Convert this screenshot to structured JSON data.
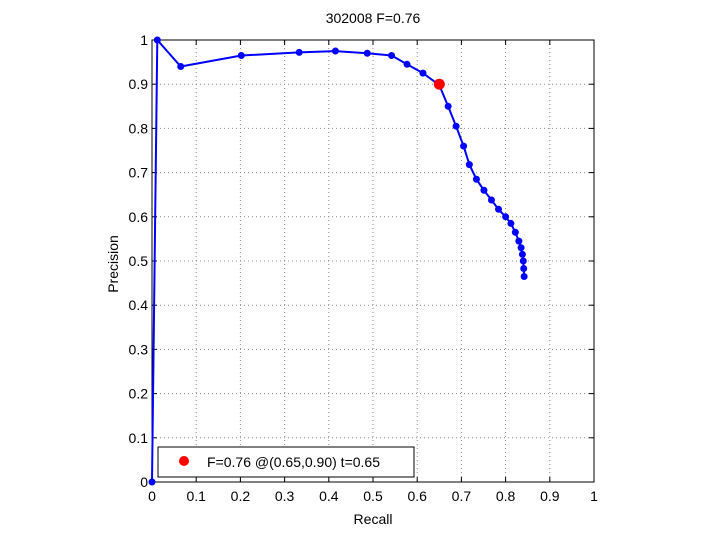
{
  "chart_data": {
    "type": "line",
    "title": "302008 F=0.76",
    "xlabel": "Recall",
    "ylabel": "Precision",
    "xlim": [
      0,
      1
    ],
    "ylim": [
      0,
      1
    ],
    "grid": true,
    "xticks": [
      "0",
      "0.1",
      "0.2",
      "0.3",
      "0.4",
      "0.5",
      "0.6",
      "0.7",
      "0.8",
      "0.9",
      "1"
    ],
    "yticks": [
      "0",
      "0.1",
      "0.2",
      "0.3",
      "0.4",
      "0.5",
      "0.6",
      "0.7",
      "0.8",
      "0.9",
      "1"
    ],
    "series": [
      {
        "color": "#0000ff",
        "marker": "circle",
        "x": [
          0.0,
          0.012,
          0.065,
          0.202,
          0.333,
          0.415,
          0.487,
          0.542,
          0.577,
          0.613,
          0.65,
          0.67,
          0.688,
          0.705,
          0.718,
          0.734,
          0.751,
          0.768,
          0.784,
          0.8,
          0.812,
          0.822,
          0.83,
          0.835,
          0.838,
          0.84,
          0.841,
          0.842
        ],
        "y": [
          0.0,
          1.0,
          0.94,
          0.965,
          0.972,
          0.975,
          0.97,
          0.965,
          0.945,
          0.925,
          0.898,
          0.85,
          0.805,
          0.76,
          0.718,
          0.685,
          0.66,
          0.638,
          0.617,
          0.6,
          0.585,
          0.565,
          0.545,
          0.53,
          0.515,
          0.5,
          0.483,
          0.465
        ]
      }
    ],
    "highlight": {
      "x": 0.65,
      "y": 0.9,
      "color": "#ff0000"
    },
    "legend": {
      "position": "bottom-left",
      "entries": [
        {
          "label": "F=0.76 @(0.65,0.90) t=0.65",
          "color": "#ff0000"
        }
      ]
    }
  }
}
